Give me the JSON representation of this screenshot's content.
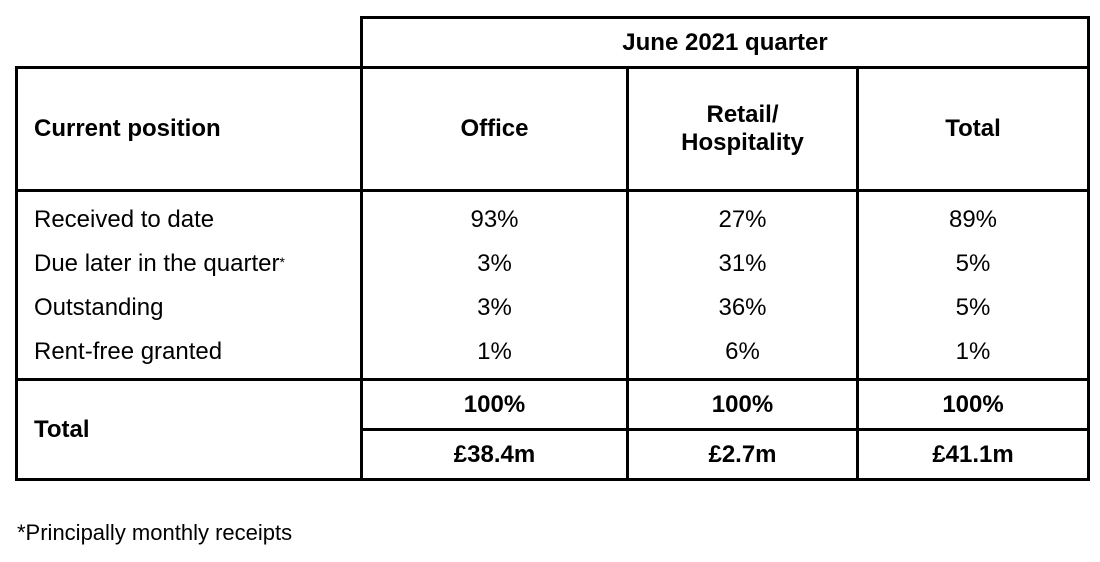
{
  "table": {
    "period_header": "June 2021 quarter",
    "row_header_label": "Current position",
    "columns": [
      "Office",
      "Retail/\nHospitality",
      "Total"
    ],
    "columns_display": {
      "office": "Office",
      "retail_line1": "Retail/",
      "retail_line2": "Hospitality",
      "total": "Total"
    },
    "rows": [
      {
        "label": "Received to date",
        "marker": "",
        "office": "93%",
        "retail": "27%",
        "total": "89%"
      },
      {
        "label": "Due later in the quarter",
        "marker": "*",
        "office": "3%",
        "retail": "31%",
        "total": "5%"
      },
      {
        "label": "Outstanding",
        "marker": "",
        "office": "3%",
        "retail": "36%",
        "total": "5%"
      },
      {
        "label": "Rent-free granted",
        "marker": "",
        "office": "1%",
        "retail": "6%",
        "total": "1%"
      }
    ],
    "total_row": {
      "label": "Total",
      "percent": {
        "office": "100%",
        "retail": "100%",
        "total": "100%"
      },
      "amount": {
        "office": "£38.4m",
        "retail": "£2.7m",
        "total": "£41.1m"
      }
    }
  },
  "footnote": "*Principally monthly receipts"
}
